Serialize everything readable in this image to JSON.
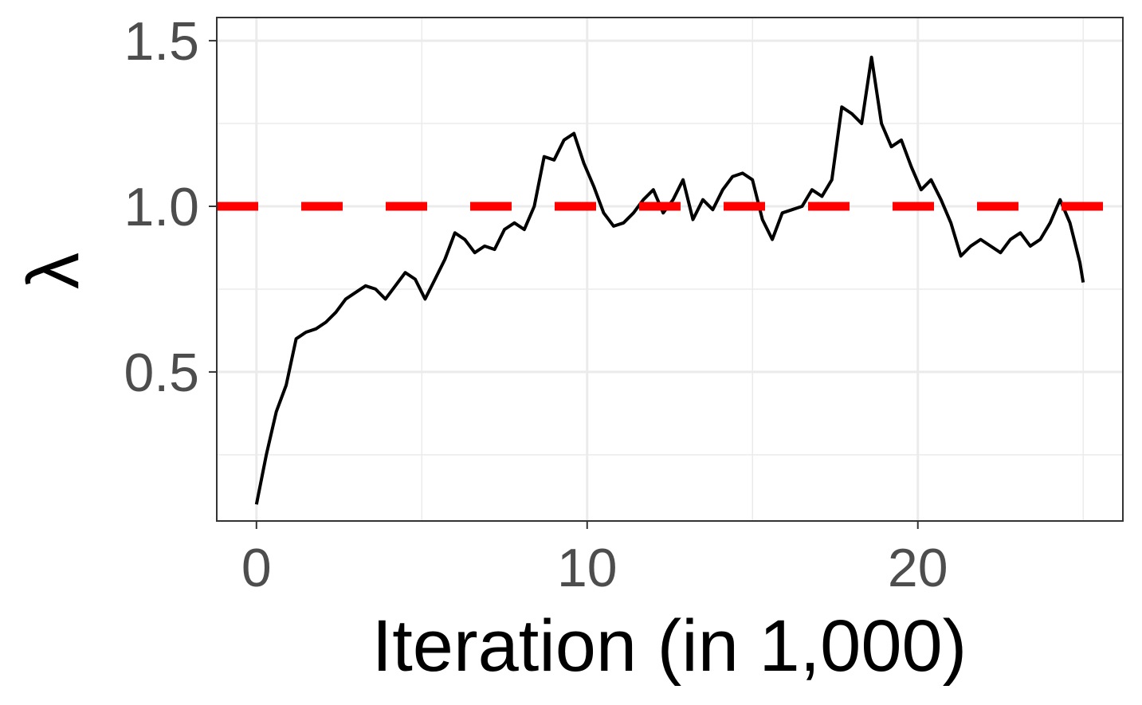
{
  "chart_data": {
    "type": "line",
    "title": "",
    "xlabel": "Iteration (in 1,000)",
    "ylabel": "λ",
    "xlim": [
      -1.2,
      26.2
    ],
    "ylim": [
      0.05,
      1.57
    ],
    "x_ticks": [
      0,
      10,
      20
    ],
    "x_tick_labels": [
      "0",
      "10",
      "20"
    ],
    "y_ticks": [
      0.5,
      1.0,
      1.5
    ],
    "y_tick_labels": [
      "0.5",
      "1.0",
      "1.5"
    ],
    "grid": true,
    "legend": "none",
    "series": [
      {
        "color": "#000000",
        "x": [
          0,
          0.3,
          0.6,
          0.9,
          1.2,
          1.5,
          1.8,
          2.1,
          2.4,
          2.7,
          3.0,
          3.3,
          3.6,
          3.9,
          4.2,
          4.5,
          4.8,
          5.1,
          5.4,
          5.7,
          6.0,
          6.3,
          6.6,
          6.9,
          7.2,
          7.5,
          7.8,
          8.1,
          8.4,
          8.7,
          9.0,
          9.3,
          9.6,
          9.9,
          10.2,
          10.5,
          10.8,
          11.1,
          11.4,
          11.7,
          12.0,
          12.3,
          12.6,
          12.9,
          13.2,
          13.5,
          13.8,
          14.1,
          14.4,
          14.7,
          15.0,
          15.3,
          15.6,
          15.9,
          16.2,
          16.5,
          16.8,
          17.1,
          17.4,
          17.7,
          18.0,
          18.3,
          18.6,
          18.9,
          19.2,
          19.5,
          19.8,
          20.1,
          20.4,
          20.7,
          21.0,
          21.3,
          21.6,
          21.9,
          22.2,
          22.5,
          22.8,
          23.1,
          23.4,
          23.7,
          24.0,
          24.3,
          24.6,
          24.9,
          25.0
        ],
        "y": [
          0.1,
          0.25,
          0.38,
          0.46,
          0.6,
          0.62,
          0.63,
          0.65,
          0.68,
          0.72,
          0.74,
          0.76,
          0.75,
          0.72,
          0.76,
          0.8,
          0.78,
          0.72,
          0.78,
          0.84,
          0.92,
          0.9,
          0.86,
          0.88,
          0.87,
          0.93,
          0.95,
          0.93,
          1.0,
          1.15,
          1.14,
          1.2,
          1.22,
          1.13,
          1.06,
          0.98,
          0.94,
          0.95,
          0.98,
          1.02,
          1.05,
          0.98,
          1.02,
          1.08,
          0.96,
          1.02,
          0.99,
          1.05,
          1.09,
          1.1,
          1.08,
          0.96,
          0.9,
          0.98,
          0.99,
          1.0,
          1.05,
          1.03,
          1.08,
          1.3,
          1.28,
          1.25,
          1.45,
          1.25,
          1.18,
          1.2,
          1.12,
          1.05,
          1.08,
          1.02,
          0.95,
          0.85,
          0.88,
          0.9,
          0.88,
          0.86,
          0.9,
          0.92,
          0.88,
          0.9,
          0.95,
          1.02,
          0.95,
          0.83,
          0.77
        ]
      }
    ],
    "reference_line": {
      "y": 1.0,
      "color": "#ff0000",
      "style": "dashed"
    }
  }
}
